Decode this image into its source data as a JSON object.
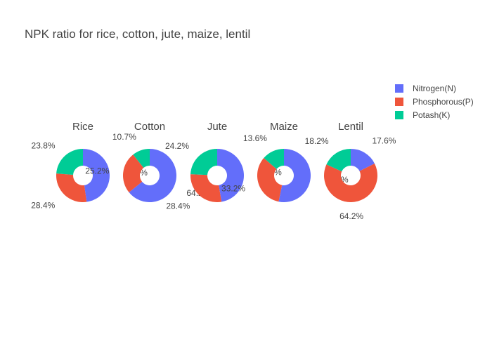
{
  "title": "NPK ratio for rice, cotton, jute, maize, lentil",
  "colors": {
    "nitrogen": "#636efa",
    "phosphorous": "#ef553b",
    "potash": "#00cc96"
  },
  "legend": [
    {
      "label": "Nitrogen(N)",
      "color": "#636efa"
    },
    {
      "label": "Phosphorous(P)",
      "color": "#ef553b"
    },
    {
      "label": "Potash(K)",
      "color": "#00cc96"
    }
  ],
  "chart_data": [
    {
      "type": "pie",
      "title": "Rice",
      "hole": true,
      "categories": [
        "Nitrogen(N)",
        "Phosphorous(P)",
        "Potash(K)"
      ],
      "values": [
        47.8,
        28.4,
        23.8
      ],
      "labels": [
        "47.8%",
        "28.4%",
        "23.8%"
      ]
    },
    {
      "type": "pie",
      "title": "Cotton",
      "hole": true,
      "categories": [
        "Nitrogen(N)",
        "Phosphorous(P)",
        "Potash(K)"
      ],
      "values": [
        64.2,
        25.2,
        10.7
      ],
      "labels": [
        "64.2%",
        "25.2%",
        "10.7%"
      ]
    },
    {
      "type": "pie",
      "title": "Jute",
      "hole": true,
      "categories": [
        "Nitrogen(N)",
        "Phosphorous(P)",
        "Potash(K)"
      ],
      "values": [
        47.4,
        28.4,
        24.2
      ],
      "labels": [
        "47.4%",
        "28.4%",
        "24.2%"
      ]
    },
    {
      "type": "pie",
      "title": "Maize",
      "hole": true,
      "categories": [
        "Nitrogen(N)",
        "Phosphorous(P)",
        "Potash(K)"
      ],
      "values": [
        53.2,
        33.2,
        13.6
      ],
      "labels": [
        "53.2%",
        "33.2%",
        "13.6%"
      ]
    },
    {
      "type": "pie",
      "title": "Lentil",
      "hole": true,
      "categories": [
        "Nitrogen(N)",
        "Phosphorous(P)",
        "Potash(K)"
      ],
      "values": [
        17.6,
        64.2,
        18.2
      ],
      "labels": [
        "17.6%",
        "64.2%",
        "18.2%"
      ]
    }
  ]
}
